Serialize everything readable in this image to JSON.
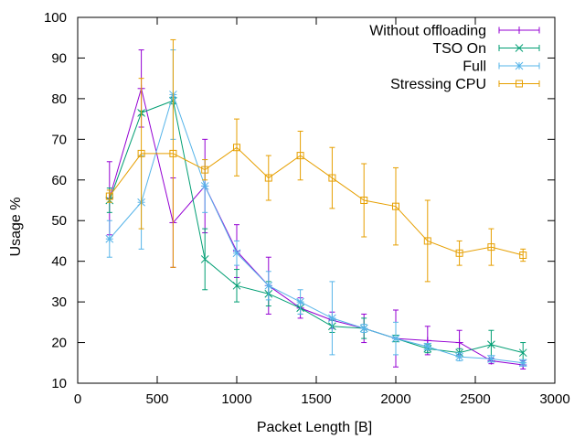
{
  "chart_data": {
    "type": "line",
    "title": "",
    "xlabel": "Packet Length [B]",
    "ylabel": "Usage %",
    "xlim": [
      0,
      3000
    ],
    "ylim": [
      10,
      100
    ],
    "xticks": [
      0,
      500,
      1000,
      1500,
      2000,
      2500,
      3000
    ],
    "yticks": [
      10,
      20,
      30,
      40,
      50,
      60,
      70,
      80,
      90,
      100
    ],
    "grid": false,
    "legend_position": "top-right",
    "series": [
      {
        "name": "Without offloading",
        "color": "#9400d3",
        "marker": "plus",
        "x": [
          200,
          400,
          600,
          800,
          1000,
          1200,
          1400,
          1600,
          1800,
          2000,
          2200,
          2400,
          2600,
          2800
        ],
        "y": [
          55.5,
          82.5,
          49.5,
          58.5,
          42.5,
          34.0,
          28.5,
          25.5,
          23.5,
          21.0,
          20.5,
          20.0,
          15.5,
          14.5
        ],
        "err": [
          9.0,
          9.5,
          11.0,
          11.5,
          6.5,
          7.0,
          2.5,
          2.0,
          3.5,
          7.0,
          3.5,
          3.0,
          0.7,
          1.0
        ]
      },
      {
        "name": "TSO On",
        "color": "#009e73",
        "marker": "cross",
        "x": [
          200,
          400,
          600,
          800,
          1000,
          1200,
          1400,
          1600,
          1800,
          2000,
          2200,
          2400,
          2600,
          2800
        ],
        "y": [
          55.0,
          76.5,
          79.5,
          40.5,
          34.0,
          32.0,
          28.5,
          24.0,
          23.5,
          21.0,
          18.5,
          17.5,
          19.5,
          17.5
        ],
        "err": [
          3.0,
          0.5,
          0.8,
          7.5,
          4.0,
          3.0,
          1.5,
          1.5,
          2.5,
          0.8,
          1.0,
          1.0,
          3.5,
          2.5
        ]
      },
      {
        "name": "Full",
        "color": "#56b4e9",
        "marker": "star",
        "x": [
          200,
          400,
          600,
          800,
          1000,
          1200,
          1400,
          1600,
          1800,
          2000,
          2200,
          2400,
          2600,
          2800
        ],
        "y": [
          45.5,
          54.5,
          81.0,
          58.5,
          42.0,
          34.0,
          30.0,
          26.0,
          23.5,
          21.0,
          19.0,
          16.5,
          16.0,
          15.0
        ],
        "err": [
          4.5,
          11.5,
          11.0,
          6.5,
          3.0,
          3.5,
          3.0,
          9.0,
          1.0,
          4.0,
          0.8,
          1.0,
          0.8,
          0.8
        ]
      },
      {
        "name": "Stressing CPU",
        "color": "#e69f00",
        "marker": "square",
        "x": [
          200,
          400,
          600,
          800,
          1000,
          1200,
          1400,
          1600,
          1800,
          2000,
          2200,
          2400,
          2600,
          2800
        ],
        "y": [
          56.0,
          66.5,
          66.5,
          62.5,
          68.0,
          60.5,
          66.0,
          60.5,
          55.0,
          53.5,
          45.0,
          42.0,
          43.5,
          41.5
        ],
        "err": [
          1.5,
          18.5,
          28.0,
          2.5,
          7.0,
          5.5,
          6.0,
          7.5,
          9.0,
          9.5,
          10.0,
          3.0,
          4.5,
          1.5
        ]
      }
    ]
  }
}
